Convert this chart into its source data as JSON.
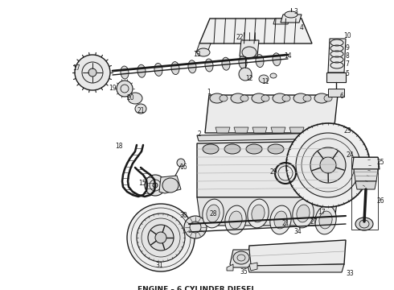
{
  "title": "ENGINE – 6 CYLINDER DIESEL",
  "title_fontsize": 6.5,
  "title_color": "#111111",
  "background_color": "#ffffff",
  "lc": "#1a1a1a",
  "lw": 0.7,
  "fig_w": 4.9,
  "fig_h": 3.6,
  "dpi": 100
}
